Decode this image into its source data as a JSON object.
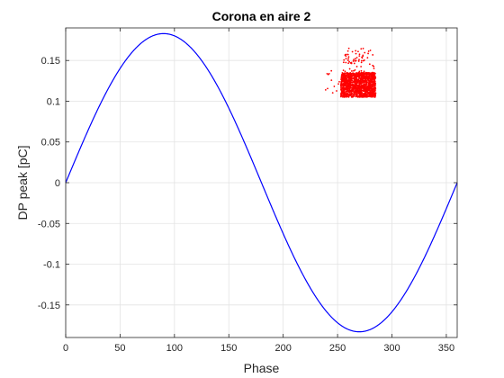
{
  "chart_data": {
    "type": "scatter",
    "title": "Corona en aire 2",
    "xlabel": "Phase",
    "ylabel": "DP peak [pC]",
    "xlim": [
      0,
      360
    ],
    "ylim": [
      -0.19,
      0.19
    ],
    "xticks": [
      0,
      50,
      100,
      150,
      200,
      250,
      300,
      350
    ],
    "yticks": [
      -0.15,
      -0.1,
      -0.05,
      0,
      0.05,
      0.1,
      0.15
    ],
    "xtick_labels": [
      "0",
      "50",
      "100",
      "150",
      "200",
      "250",
      "300",
      "350"
    ],
    "ytick_labels": [
      "-0.15",
      "-0.1",
      "-0.05",
      "0",
      "0.05",
      "0.1",
      "0.15"
    ],
    "grid": true,
    "series": [
      {
        "kind": "line",
        "color": "#0000ff",
        "function": "sine",
        "amplitude": 0.183,
        "period": 360,
        "x_range": [
          0,
          360
        ]
      },
      {
        "kind": "scatter",
        "color": "#ff0000",
        "clusters": [
          {
            "x_range": [
              253,
              285
            ],
            "y_range": [
              0.105,
              0.135
            ],
            "count": 1400
          },
          {
            "x_range": [
              255,
              284
            ],
            "y_range": [
              0.135,
              0.165
            ],
            "count": 70
          },
          {
            "x_range": [
              236,
              252
            ],
            "y_range": [
              0.11,
              0.14
            ],
            "count": 12
          }
        ]
      }
    ]
  }
}
